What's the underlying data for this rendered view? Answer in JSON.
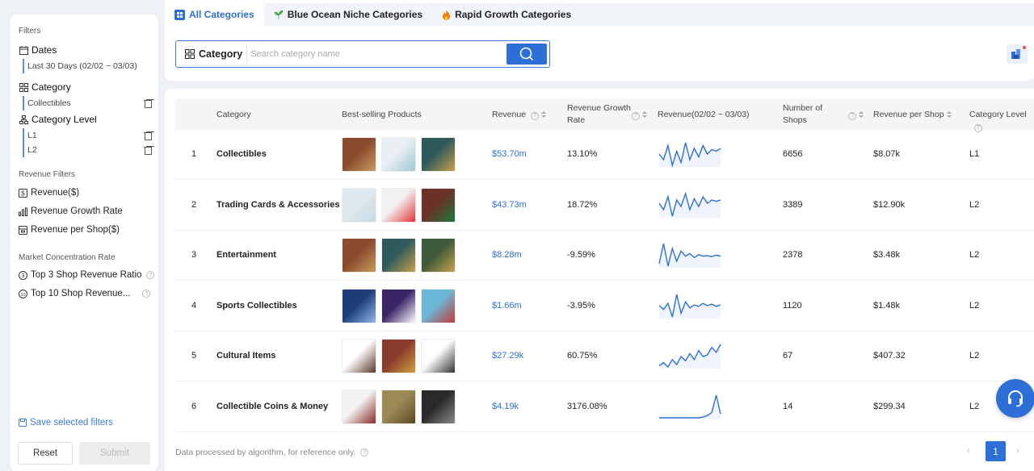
{
  "tabs": [
    {
      "label": "All Categories",
      "icon": "grid-icon"
    },
    {
      "label": "Blue Ocean Niche Categories",
      "icon": "sprout-icon"
    },
    {
      "label": "Rapid Growth Categories",
      "icon": "fire-icon"
    }
  ],
  "search": {
    "label": "Category",
    "placeholder": "Search category name"
  },
  "sidebar": {
    "filters_title": "Filters",
    "dates_title": "Dates",
    "dates_value": "Last 30 Days (02/02 ~ 03/03)",
    "category_title": "Category",
    "category_value": "Collectibles",
    "category_level_title": "Category Level",
    "levels": [
      "L1",
      "L2"
    ],
    "revenue_filters_title": "Revenue Filters",
    "revenue_filters": [
      "Revenue($)",
      "Revenue Growth Rate",
      "Revenue per Shop($)"
    ],
    "market_title": "Market Concentration Rate",
    "market_items": [
      "Top 3 Shop Revenue Ratio",
      "Top 10 Shop Revenue..."
    ],
    "save_filters": "Save selected filters",
    "reset": "Reset",
    "submit": "Submit"
  },
  "table": {
    "headers": {
      "category": "Category",
      "products": "Best-selling Products",
      "revenue": "Revenue",
      "growth_line1": "Revenue Growth",
      "growth_line2": "Rate",
      "trend": "Revenue(02/02 ~ 03/03)",
      "shops_line1": "Number of",
      "shops_line2": "Shops",
      "rps": "Revenue per Shop",
      "level": "Category Level"
    },
    "rows": [
      {
        "rank": "1",
        "name": "Collectibles",
        "revenue": "$53.70m",
        "growth": "13.10%",
        "shops": "6656",
        "rps": "$8.07k",
        "level": "L1",
        "spark": [
          40,
          30,
          55,
          20,
          45,
          25,
          60,
          30,
          50,
          35,
          55,
          40,
          48,
          45,
          50
        ]
      },
      {
        "rank": "2",
        "name": "Trading Cards & Accessories",
        "revenue": "$43.73m",
        "growth": "18.72%",
        "shops": "3389",
        "rps": "$12.90k",
        "level": "L2",
        "spark": [
          45,
          35,
          55,
          25,
          50,
          40,
          60,
          35,
          52,
          40,
          55,
          45,
          50,
          48,
          50
        ]
      },
      {
        "rank": "3",
        "name": "Entertainment",
        "revenue": "$8.28m",
        "growth": "-9.59%",
        "shops": "2378",
        "rps": "$3.48k",
        "level": "L2",
        "spark": [
          30,
          70,
          25,
          60,
          35,
          55,
          45,
          50,
          42,
          48,
          45,
          46,
          44,
          47,
          45
        ]
      },
      {
        "rank": "4",
        "name": "Sports Collectibles",
        "revenue": "$1.66m",
        "growth": "-3.95%",
        "shops": "1120",
        "rps": "$1.48k",
        "level": "L2",
        "spark": [
          45,
          40,
          48,
          30,
          60,
          35,
          50,
          42,
          46,
          44,
          48,
          45,
          47,
          44,
          46
        ]
      },
      {
        "rank": "5",
        "name": "Cultural Items",
        "revenue": "$27.29k",
        "growth": "60.75%",
        "shops": "67",
        "rps": "$407.32",
        "level": "L2",
        "spark": [
          20,
          25,
          18,
          30,
          22,
          35,
          28,
          40,
          30,
          45,
          35,
          38,
          50,
          42,
          55
        ]
      },
      {
        "rank": "6",
        "name": "Collectible Coins & Money",
        "revenue": "$4.19k",
        "growth": "3176.08%",
        "shops": "14",
        "rps": "$299.34",
        "level": "L2",
        "spark": [
          5,
          5,
          5,
          5,
          5,
          5,
          5,
          5,
          5,
          5,
          6,
          8,
          12,
          35,
          10
        ]
      }
    ]
  },
  "footnote": "Data processed by algorithm, for reference only.",
  "pager": {
    "prev": "‹",
    "page": "1",
    "next": "›"
  },
  "colors": {
    "accent": "#2d6fd6"
  }
}
